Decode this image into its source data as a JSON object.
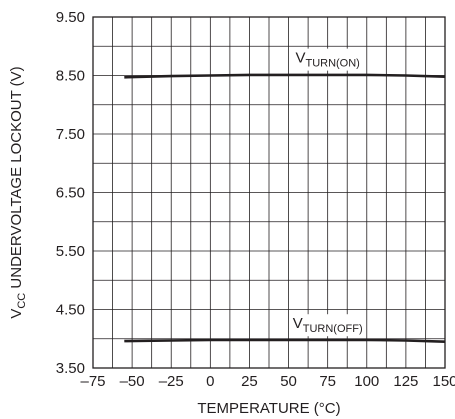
{
  "chart_data": {
    "type": "line",
    "xlabel": "TEMPERATURE (°C)",
    "ylabel": {
      "prefix": "V",
      "subscript": "CC",
      "suffix": " UNDERVOLTAGE LOCKOUT (V)"
    },
    "xlim": [
      -75,
      150
    ],
    "ylim": [
      3.5,
      9.5
    ],
    "x_ticks": [
      -75,
      -50,
      -25,
      0,
      25,
      50,
      75,
      100,
      125,
      150
    ],
    "x_tick_labels": [
      "–75",
      "–50",
      "–25",
      "0",
      "25",
      "50",
      "75",
      "100",
      "125",
      "150"
    ],
    "y_ticks": [
      3.5,
      4.5,
      5.5,
      6.5,
      7.5,
      8.5,
      9.5
    ],
    "y_tick_labels": [
      "3.50",
      "4.50",
      "5.50",
      "6.50",
      "7.50",
      "8.50",
      "9.50"
    ],
    "grid": true,
    "series": [
      {
        "name": {
          "prefix": "V",
          "subscript": "TURN(ON)"
        },
        "color": "#231f20",
        "x": [
          -55,
          -25,
          0,
          25,
          50,
          75,
          100,
          125,
          150
        ],
        "y": [
          8.47,
          8.49,
          8.5,
          8.51,
          8.51,
          8.51,
          8.51,
          8.5,
          8.48
        ]
      },
      {
        "name": {
          "prefix": "V",
          "subscript": "TURN(OFF)"
        },
        "color": "#231f20",
        "x": [
          -55,
          -25,
          0,
          25,
          50,
          75,
          100,
          125,
          150
        ],
        "y": [
          3.96,
          3.97,
          3.98,
          3.98,
          3.98,
          3.98,
          3.98,
          3.97,
          3.95
        ]
      }
    ]
  }
}
